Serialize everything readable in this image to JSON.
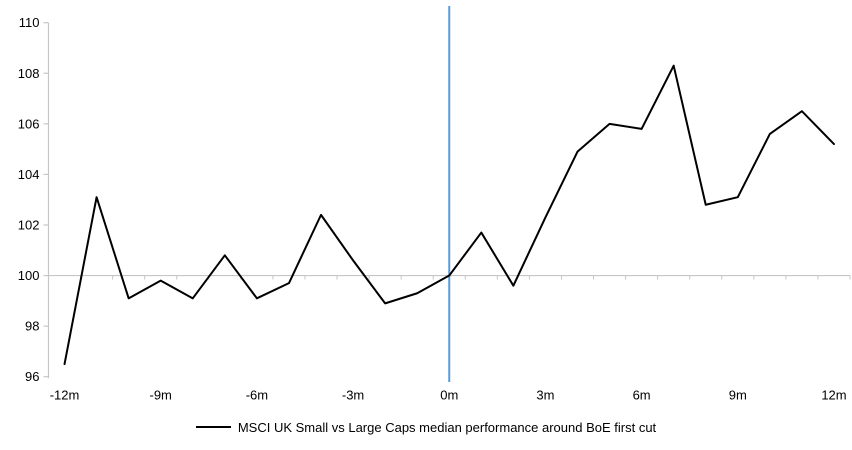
{
  "chart_data": {
    "type": "line",
    "legend": "MSCI UK Small vs Large Caps median performance around BoE first cut",
    "legend_position": "bottom",
    "x": [
      -12,
      -11,
      -10,
      -9,
      -8,
      -7,
      -6,
      -5,
      -4,
      -3,
      -2,
      -1,
      0,
      1,
      2,
      3,
      4,
      5,
      6,
      7,
      8,
      9,
      10,
      11,
      12
    ],
    "series": [
      {
        "name": "MSCI UK Small vs Large Caps median performance around BoE first cut",
        "color": "#000000",
        "values": [
          96.5,
          103.1,
          99.1,
          99.8,
          99.1,
          100.8,
          99.1,
          99.7,
          102.4,
          100.6,
          98.9,
          99.3,
          100.0,
          101.7,
          99.6,
          102.3,
          104.9,
          106.0,
          105.8,
          108.3,
          102.8,
          103.1,
          105.6,
          106.5,
          105.2
        ]
      }
    ],
    "ylim": [
      96,
      110
    ],
    "ytick_values": [
      110,
      108,
      106,
      104,
      102,
      100,
      98,
      96
    ],
    "ytick_labels": [
      "110",
      "108",
      "106",
      "104",
      "102",
      "100",
      "98",
      "96"
    ],
    "xtick_values": [
      -12,
      -9,
      -6,
      -3,
      0,
      3,
      6,
      9,
      12
    ],
    "xtick_labels": [
      "-12m",
      "-9m",
      "-6m",
      "-3m",
      "0m",
      "3m",
      "6m",
      "9m",
      "12m"
    ],
    "baseline": {
      "value": 100
    },
    "event_line": {
      "x": 0,
      "color": "#5B9BD5"
    },
    "grid": "baseline-only",
    "colors": {
      "axis": "#C6C6C6",
      "text": "#000000",
      "series": "#000000",
      "event_line": "#5B9BD5"
    }
  }
}
